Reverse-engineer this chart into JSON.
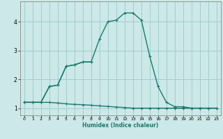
{
  "xlabel": "Humidex (Indice chaleur)",
  "bg_color": "#cce8e8",
  "line_color": "#1a7a6e",
  "grid_color": "#a0cece",
  "x_values": [
    0,
    1,
    2,
    3,
    4,
    5,
    6,
    7,
    8,
    9,
    10,
    11,
    12,
    13,
    14,
    15,
    16,
    17,
    18,
    19,
    20,
    21,
    22,
    23
  ],
  "line1_y": [
    1.2,
    1.2,
    1.2,
    1.75,
    1.8,
    2.45,
    2.5,
    2.6,
    2.6,
    3.4,
    4.0,
    4.05,
    4.3,
    4.3,
    4.05,
    2.8,
    1.75,
    1.2,
    1.05,
    1.05,
    1.0,
    1.0,
    1.0,
    1.0
  ],
  "line2_y": [
    1.2,
    1.2,
    1.2,
    1.75,
    1.8,
    2.45,
    2.5,
    2.6,
    2.6,
    null,
    null,
    null,
    null,
    null,
    null,
    null,
    null,
    null,
    null,
    null,
    null,
    null,
    null,
    null
  ],
  "line3_y": [
    1.2,
    1.2,
    1.2,
    1.2,
    1.18,
    1.15,
    1.13,
    1.12,
    1.1,
    1.08,
    1.06,
    1.04,
    1.02,
    1.0,
    1.0,
    1.0,
    1.0,
    1.0,
    1.0,
    1.0,
    1.0,
    1.0,
    1.0,
    1.0
  ],
  "ylim": [
    0.75,
    4.7
  ],
  "xlim": [
    -0.5,
    23.5
  ],
  "yticks": [
    1,
    2,
    3,
    4
  ],
  "xticks": [
    0,
    1,
    2,
    3,
    4,
    5,
    6,
    7,
    8,
    9,
    10,
    11,
    12,
    13,
    14,
    15,
    16,
    17,
    18,
    19,
    20,
    21,
    22,
    23
  ]
}
